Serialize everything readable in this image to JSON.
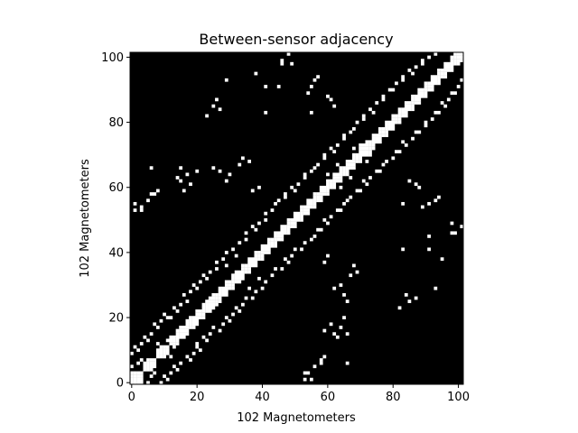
{
  "chart_data": {
    "type": "heatmap",
    "title": "Between-sensor adjacency",
    "xlabel": "102 Magnetometers",
    "ylabel": "102 Magnetometers",
    "n": 102,
    "xlim": [
      -0.5,
      101.5
    ],
    "ylim": [
      -0.5,
      101.5
    ],
    "xticks": [
      0,
      20,
      40,
      60,
      80,
      100
    ],
    "yticks": [
      0,
      20,
      40,
      60,
      80,
      100
    ],
    "colormap": {
      "0": "#000000",
      "1": "#ffffff"
    },
    "values_description": "binary 0/1 symmetric adjacency matrix",
    "edges": [
      [
        0,
        1
      ],
      [
        0,
        2
      ],
      [
        0,
        3
      ],
      [
        1,
        2
      ],
      [
        1,
        3
      ],
      [
        2,
        3
      ],
      [
        0,
        5
      ],
      [
        2,
        6
      ],
      [
        3,
        7
      ],
      [
        4,
        5
      ],
      [
        4,
        6
      ],
      [
        5,
        6
      ],
      [
        5,
        7
      ],
      [
        6,
        7
      ],
      [
        8,
        9
      ],
      [
        8,
        10
      ],
      [
        9,
        10
      ],
      [
        9,
        11
      ],
      [
        10,
        11
      ],
      [
        8,
        12
      ],
      [
        11,
        13
      ],
      [
        12,
        13
      ],
      [
        12,
        14
      ],
      [
        13,
        14
      ],
      [
        14,
        15
      ],
      [
        14,
        16
      ],
      [
        15,
        16
      ],
      [
        15,
        17
      ],
      [
        16,
        17
      ],
      [
        17,
        18
      ],
      [
        17,
        19
      ],
      [
        18,
        19
      ],
      [
        18,
        20
      ],
      [
        19,
        20
      ],
      [
        20,
        21
      ],
      [
        20,
        22
      ],
      [
        21,
        22
      ],
      [
        22,
        23
      ],
      [
        22,
        24
      ],
      [
        23,
        24
      ],
      [
        23,
        25
      ],
      [
        24,
        25
      ],
      [
        24,
        26
      ],
      [
        25,
        26
      ],
      [
        25,
        27
      ],
      [
        26,
        27
      ],
      [
        27,
        28
      ],
      [
        27,
        29
      ],
      [
        28,
        29
      ],
      [
        29,
        30
      ],
      [
        29,
        31
      ],
      [
        30,
        31
      ],
      [
        31,
        32
      ],
      [
        31,
        33
      ],
      [
        32,
        33
      ],
      [
        32,
        34
      ],
      [
        33,
        34
      ],
      [
        34,
        35
      ],
      [
        34,
        36
      ],
      [
        35,
        36
      ],
      [
        36,
        37
      ],
      [
        36,
        38
      ],
      [
        37,
        38
      ],
      [
        38,
        39
      ],
      [
        38,
        40
      ],
      [
        39,
        40
      ],
      [
        40,
        41
      ],
      [
        40,
        42
      ],
      [
        41,
        42
      ],
      [
        42,
        43
      ],
      [
        42,
        44
      ],
      [
        43,
        44
      ],
      [
        44,
        45
      ],
      [
        44,
        46
      ],
      [
        45,
        46
      ],
      [
        46,
        47
      ],
      [
        46,
        48
      ],
      [
        47,
        48
      ],
      [
        48,
        49
      ],
      [
        48,
        50
      ],
      [
        49,
        50
      ],
      [
        50,
        51
      ],
      [
        50,
        52
      ],
      [
        51,
        52
      ],
      [
        52,
        53
      ],
      [
        52,
        54
      ],
      [
        53,
        54
      ],
      [
        54,
        55
      ],
      [
        54,
        56
      ],
      [
        55,
        56
      ],
      [
        56,
        57
      ],
      [
        56,
        58
      ],
      [
        57,
        58
      ],
      [
        58,
        59
      ],
      [
        58,
        60
      ],
      [
        59,
        60
      ],
      [
        60,
        61
      ],
      [
        60,
        62
      ],
      [
        61,
        62
      ],
      [
        62,
        63
      ],
      [
        62,
        64
      ],
      [
        63,
        64
      ],
      [
        64,
        65
      ],
      [
        64,
        66
      ],
      [
        65,
        66
      ],
      [
        66,
        67
      ],
      [
        66,
        68
      ],
      [
        67,
        68
      ],
      [
        68,
        69
      ],
      [
        68,
        70
      ],
      [
        69,
        70
      ],
      [
        70,
        71
      ],
      [
        70,
        72
      ],
      [
        71,
        72
      ],
      [
        72,
        73
      ],
      [
        72,
        74
      ],
      [
        73,
        74
      ],
      [
        74,
        75
      ],
      [
        74,
        76
      ],
      [
        75,
        76
      ],
      [
        76,
        77
      ],
      [
        76,
        78
      ],
      [
        77,
        78
      ],
      [
        78,
        79
      ],
      [
        78,
        80
      ],
      [
        79,
        80
      ],
      [
        80,
        81
      ],
      [
        80,
        82
      ],
      [
        81,
        82
      ],
      [
        82,
        83
      ],
      [
        82,
        84
      ],
      [
        83,
        84
      ],
      [
        84,
        85
      ],
      [
        84,
        86
      ],
      [
        85,
        86
      ],
      [
        86,
        87
      ],
      [
        86,
        88
      ],
      [
        87,
        88
      ],
      [
        88,
        89
      ],
      [
        88,
        90
      ],
      [
        89,
        90
      ],
      [
        90,
        91
      ],
      [
        90,
        92
      ],
      [
        91,
        92
      ],
      [
        92,
        93
      ],
      [
        92,
        94
      ],
      [
        93,
        94
      ],
      [
        94,
        95
      ],
      [
        94,
        96
      ],
      [
        95,
        96
      ],
      [
        96,
        97
      ],
      [
        96,
        98
      ],
      [
        97,
        98
      ],
      [
        98,
        99
      ],
      [
        98,
        100
      ],
      [
        99,
        100
      ],
      [
        100,
        101
      ],
      [
        99,
        101
      ],
      [
        0,
        9
      ],
      [
        1,
        11
      ],
      [
        3,
        12
      ],
      [
        4,
        14
      ],
      [
        6,
        15
      ],
      [
        7,
        18
      ],
      [
        9,
        19
      ],
      [
        10,
        21
      ],
      [
        12,
        20
      ],
      [
        13,
        23
      ],
      [
        15,
        24
      ],
      [
        16,
        27
      ],
      [
        18,
        28
      ],
      [
        19,
        30
      ],
      [
        21,
        31
      ],
      [
        22,
        33
      ],
      [
        24,
        34
      ],
      [
        26,
        37
      ],
      [
        28,
        38
      ],
      [
        29,
        40
      ],
      [
        31,
        41
      ],
      [
        33,
        43
      ],
      [
        35,
        46
      ],
      [
        37,
        48
      ],
      [
        39,
        49
      ],
      [
        41,
        52
      ],
      [
        43,
        53
      ],
      [
        45,
        56
      ],
      [
        47,
        58
      ],
      [
        49,
        60
      ],
      [
        51,
        61
      ],
      [
        53,
        63
      ],
      [
        55,
        65
      ],
      [
        57,
        67
      ],
      [
        59,
        70
      ],
      [
        61,
        72
      ],
      [
        63,
        73
      ],
      [
        65,
        76
      ],
      [
        67,
        77
      ],
      [
        69,
        80
      ],
      [
        71,
        82
      ],
      [
        73,
        84
      ],
      [
        75,
        86
      ],
      [
        77,
        88
      ],
      [
        79,
        90
      ],
      [
        81,
        92
      ],
      [
        83,
        94
      ],
      [
        85,
        96
      ],
      [
        87,
        97
      ],
      [
        89,
        99
      ],
      [
        91,
        100
      ],
      [
        93,
        101
      ],
      [
        2,
        10
      ],
      [
        5,
        13
      ],
      [
        8,
        17
      ],
      [
        11,
        20
      ],
      [
        14,
        22
      ],
      [
        17,
        25
      ],
      [
        20,
        29
      ],
      [
        23,
        32
      ],
      [
        26,
        35
      ],
      [
        29,
        36
      ],
      [
        32,
        39
      ],
      [
        35,
        44
      ],
      [
        38,
        47
      ],
      [
        41,
        50
      ],
      [
        44,
        55
      ],
      [
        47,
        57
      ],
      [
        50,
        59
      ],
      [
        53,
        64
      ],
      [
        56,
        66
      ],
      [
        59,
        69
      ],
      [
        62,
        71
      ],
      [
        65,
        75
      ],
      [
        68,
        78
      ],
      [
        71,
        81
      ],
      [
        74,
        83
      ],
      [
        77,
        87
      ],
      [
        80,
        90
      ],
      [
        83,
        93
      ],
      [
        86,
        95
      ],
      [
        89,
        98
      ],
      [
        6,
        66
      ],
      [
        15,
        66
      ],
      [
        5,
        56
      ],
      [
        3,
        54
      ],
      [
        7,
        58
      ],
      [
        15,
        62
      ],
      [
        27,
        84
      ],
      [
        25,
        85
      ],
      [
        26,
        87
      ],
      [
        23,
        82
      ],
      [
        29,
        93
      ],
      [
        38,
        95
      ],
      [
        56,
        93
      ],
      [
        57,
        94
      ],
      [
        55,
        91
      ],
      [
        61,
        87
      ],
      [
        62,
        85
      ],
      [
        60,
        88
      ],
      [
        54,
        89
      ],
      [
        60,
        64
      ],
      [
        63,
        67
      ],
      [
        64,
        66
      ],
      [
        68,
        72
      ],
      [
        70,
        73
      ],
      [
        71,
        73
      ],
      [
        83,
        55
      ],
      [
        91,
        45
      ],
      [
        83,
        41
      ],
      [
        91,
        41
      ],
      [
        98,
        46
      ],
      [
        99,
        46
      ],
      [
        101,
        48
      ],
      [
        98,
        49
      ],
      [
        1,
        53
      ],
      [
        1,
        55
      ],
      [
        3,
        53
      ],
      [
        56,
        5
      ],
      [
        58,
        6
      ],
      [
        59,
        8
      ],
      [
        59,
        16
      ],
      [
        61,
        18
      ],
      [
        63,
        14
      ],
      [
        64,
        17
      ],
      [
        65,
        20
      ],
      [
        66,
        25
      ],
      [
        65,
        27
      ],
      [
        62,
        29
      ],
      [
        64,
        30
      ],
      [
        67,
        33
      ],
      [
        69,
        34
      ],
      [
        68,
        36
      ],
      [
        59,
        37
      ],
      [
        60,
        39
      ]
    ]
  }
}
